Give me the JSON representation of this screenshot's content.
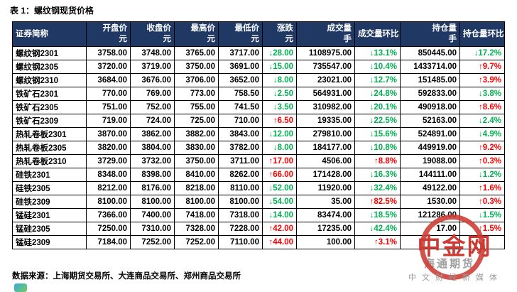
{
  "page": {
    "title": "表 1：螺纹钢现货价格",
    "source": "数据来源：上海期货交易所、大连商品交易所、郑州商品交易所"
  },
  "colors": {
    "up": "#fe0000",
    "down": "#00b050",
    "header_bg": "#1f3864",
    "watermark_red": "#cd3a32",
    "watermark_gray": "#9b9b9b"
  },
  "table": {
    "columns": [
      {
        "key": "name",
        "line1": "证券简称",
        "line2": "",
        "align": "left"
      },
      {
        "key": "open",
        "line1": "开盘价",
        "line2": "元",
        "align": "right"
      },
      {
        "key": "close",
        "line1": "收盘价",
        "line2": "元",
        "align": "right"
      },
      {
        "key": "high",
        "line1": "最高价",
        "line2": "元",
        "align": "right"
      },
      {
        "key": "low",
        "line1": "最低价",
        "line2": "元",
        "align": "right"
      },
      {
        "key": "change",
        "line1": "涨跌",
        "line2": "元",
        "align": "right"
      },
      {
        "key": "volume",
        "line1": "成交量",
        "line2": "手",
        "align": "right"
      },
      {
        "key": "volume_mom",
        "line1": "成交量环比",
        "line2": "",
        "align": "right"
      },
      {
        "key": "oi",
        "line1": "持仓量",
        "line2": "手",
        "align": "right"
      },
      {
        "key": "oi_mom",
        "line1": "持仓量环比",
        "line2": "",
        "align": "right"
      }
    ],
    "rows": [
      {
        "name": "螺纹钢2301",
        "open": "3758.00",
        "close": "3748.00",
        "high": "3765.00",
        "low": "3717.00",
        "change": {
          "text": "↓28.00",
          "dir": "down"
        },
        "volume": "1108975.00",
        "volume_mom": {
          "text": "↓13.1%",
          "dir": "down"
        },
        "oi": "850445.00",
        "oi_mom": {
          "text": "↓17.2%",
          "dir": "down"
        }
      },
      {
        "name": "螺纹钢2305",
        "open": "3720.00",
        "close": "3719.00",
        "high": "3750.00",
        "low": "3691.00",
        "change": {
          "text": "↓15.00",
          "dir": "down"
        },
        "volume": "735547.00",
        "volume_mom": {
          "text": "↓10.4%",
          "dir": "down"
        },
        "oi": "1433714.00",
        "oi_mom": {
          "text": "↑9.7%",
          "dir": "up"
        }
      },
      {
        "name": "螺纹钢2310",
        "open": "3684.00",
        "close": "3676.00",
        "high": "3706.00",
        "low": "3652.00",
        "change": {
          "text": "↓8.00",
          "dir": "down"
        },
        "volume": "23021.00",
        "volume_mom": {
          "text": "↓12.7%",
          "dir": "down"
        },
        "oi": "151485.00",
        "oi_mom": {
          "text": "↑3.9%",
          "dir": "up"
        }
      },
      {
        "name": "铁矿石2301",
        "open": "770.00",
        "close": "769.00",
        "high": "773.00",
        "low": "758.50",
        "change": {
          "text": "↓2.50",
          "dir": "down"
        },
        "volume": "564931.00",
        "volume_mom": {
          "text": "↓24.8%",
          "dir": "down"
        },
        "oi": "592833.00",
        "oi_mom": {
          "text": "↓3.8%",
          "dir": "down"
        }
      },
      {
        "name": "铁矿石2305",
        "open": "751.00",
        "close": "752.00",
        "high": "755.00",
        "low": "741.50",
        "change": {
          "text": "↓3.50",
          "dir": "down"
        },
        "volume": "310982.00",
        "volume_mom": {
          "text": "↓20.1%",
          "dir": "down"
        },
        "oi": "490918.00",
        "oi_mom": {
          "text": "↑8.6%",
          "dir": "up"
        }
      },
      {
        "name": "铁矿石2309",
        "open": "719.00",
        "close": "724.00",
        "high": "725.00",
        "low": "710.00",
        "change": {
          "text": "↑6.50",
          "dir": "up"
        },
        "volume": "19335.00",
        "volume_mom": {
          "text": "↓22.5%",
          "dir": "down"
        },
        "oi": "52163.00",
        "oi_mom": {
          "text": "↓2.4%",
          "dir": "down"
        }
      },
      {
        "name": "热轧卷板2301",
        "open": "3870.00",
        "close": "3862.00",
        "high": "3882.00",
        "low": "3843.00",
        "change": {
          "text": "↓12.00",
          "dir": "down"
        },
        "volume": "279810.00",
        "volume_mom": {
          "text": "↓15.6%",
          "dir": "down"
        },
        "oi": "524891.00",
        "oi_mom": {
          "text": "↓4.9%",
          "dir": "down"
        }
      },
      {
        "name": "热轧卷板2305",
        "open": "3820.00",
        "close": "3804.00",
        "high": "3830.00",
        "low": "3782.00",
        "change": {
          "text": "↓8.00",
          "dir": "down"
        },
        "volume": "184177.00",
        "volume_mom": {
          "text": "↓10.8%",
          "dir": "down"
        },
        "oi": "449919.00",
        "oi_mom": {
          "text": "↑9.2%",
          "dir": "up"
        }
      },
      {
        "name": "热轧卷板2310",
        "open": "3729.00",
        "close": "3732.00",
        "high": "3750.00",
        "low": "3711.00",
        "change": {
          "text": "↑17.00",
          "dir": "up"
        },
        "volume": "4506.00",
        "volume_mom": {
          "text": "↑8.8%",
          "dir": "up"
        },
        "oi": "19088.00",
        "oi_mom": {
          "text": "↑0.3%",
          "dir": "up"
        }
      },
      {
        "name": "硅铁2301",
        "open": "8348.00",
        "close": "8398.00",
        "high": "8410.00",
        "low": "8262.00",
        "change": {
          "text": "↑66.00",
          "dir": "up"
        },
        "volume": "171428.00",
        "volume_mom": {
          "text": "↓16.3%",
          "dir": "down"
        },
        "oi": "144111.00",
        "oi_mom": {
          "text": "↓1.2%",
          "dir": "down"
        }
      },
      {
        "name": "硅铁2305",
        "open": "8212.00",
        "close": "8176.00",
        "high": "8218.00",
        "low": "8110.00",
        "change": {
          "text": "↓52.00",
          "dir": "down"
        },
        "volume": "11920.00",
        "volume_mom": {
          "text": "↓32.4%",
          "dir": "down"
        },
        "oi": "49122.00",
        "oi_mom": {
          "text": "↑1.6%",
          "dir": "up"
        }
      },
      {
        "name": "硅铁2309",
        "open": "8100.00",
        "close": "8100.00",
        "high": "8100.00",
        "low": "8100.00",
        "change": {
          "text": "↓54.00",
          "dir": "down"
        },
        "volume": "35.00",
        "volume_mom": {
          "text": "↑82.5%",
          "dir": "up"
        },
        "oi": "1530.00",
        "oi_mom": {
          "text": "↑0.3%",
          "dir": "up"
        }
      },
      {
        "name": "锰硅2301",
        "open": "7366.00",
        "close": "7400.00",
        "high": "7418.00",
        "low": "7318.00",
        "change": {
          "text": "↓14.00",
          "dir": "down"
        },
        "volume": "83474.00",
        "volume_mom": {
          "text": "↓18.5%",
          "dir": "down"
        },
        "oi": "121286.00",
        "oi_mom": {
          "text": "↓1.5%",
          "dir": "down"
        }
      },
      {
        "name": "锰硅2305",
        "open": "7250.00",
        "close": "7310.00",
        "high": "7328.00",
        "low": "7228.00",
        "change": {
          "text": "↑42.00",
          "dir": "up"
        },
        "volume": "17235.00",
        "volume_mom": {
          "text": "↓42.4%",
          "dir": "down"
        },
        "oi": "17.00",
        "oi_mom": {
          "text": "↑1.5%",
          "dir": "up"
        }
      },
      {
        "name": "锰硅2309",
        "open": "7184.00",
        "close": "7252.00",
        "high": "7252.00",
        "low": "7110.00",
        "change": {
          "text": "↑44.00",
          "dir": "up"
        },
        "volume": "100.00",
        "volume_mom": {
          "text": "↑3.1%",
          "dir": "up"
        },
        "oi": "",
        "oi_mom": ""
      }
    ]
  },
  "watermark": {
    "logo_text": "中金网",
    "brand_text": "海通期货",
    "tagline": "中文财经新媒体"
  }
}
